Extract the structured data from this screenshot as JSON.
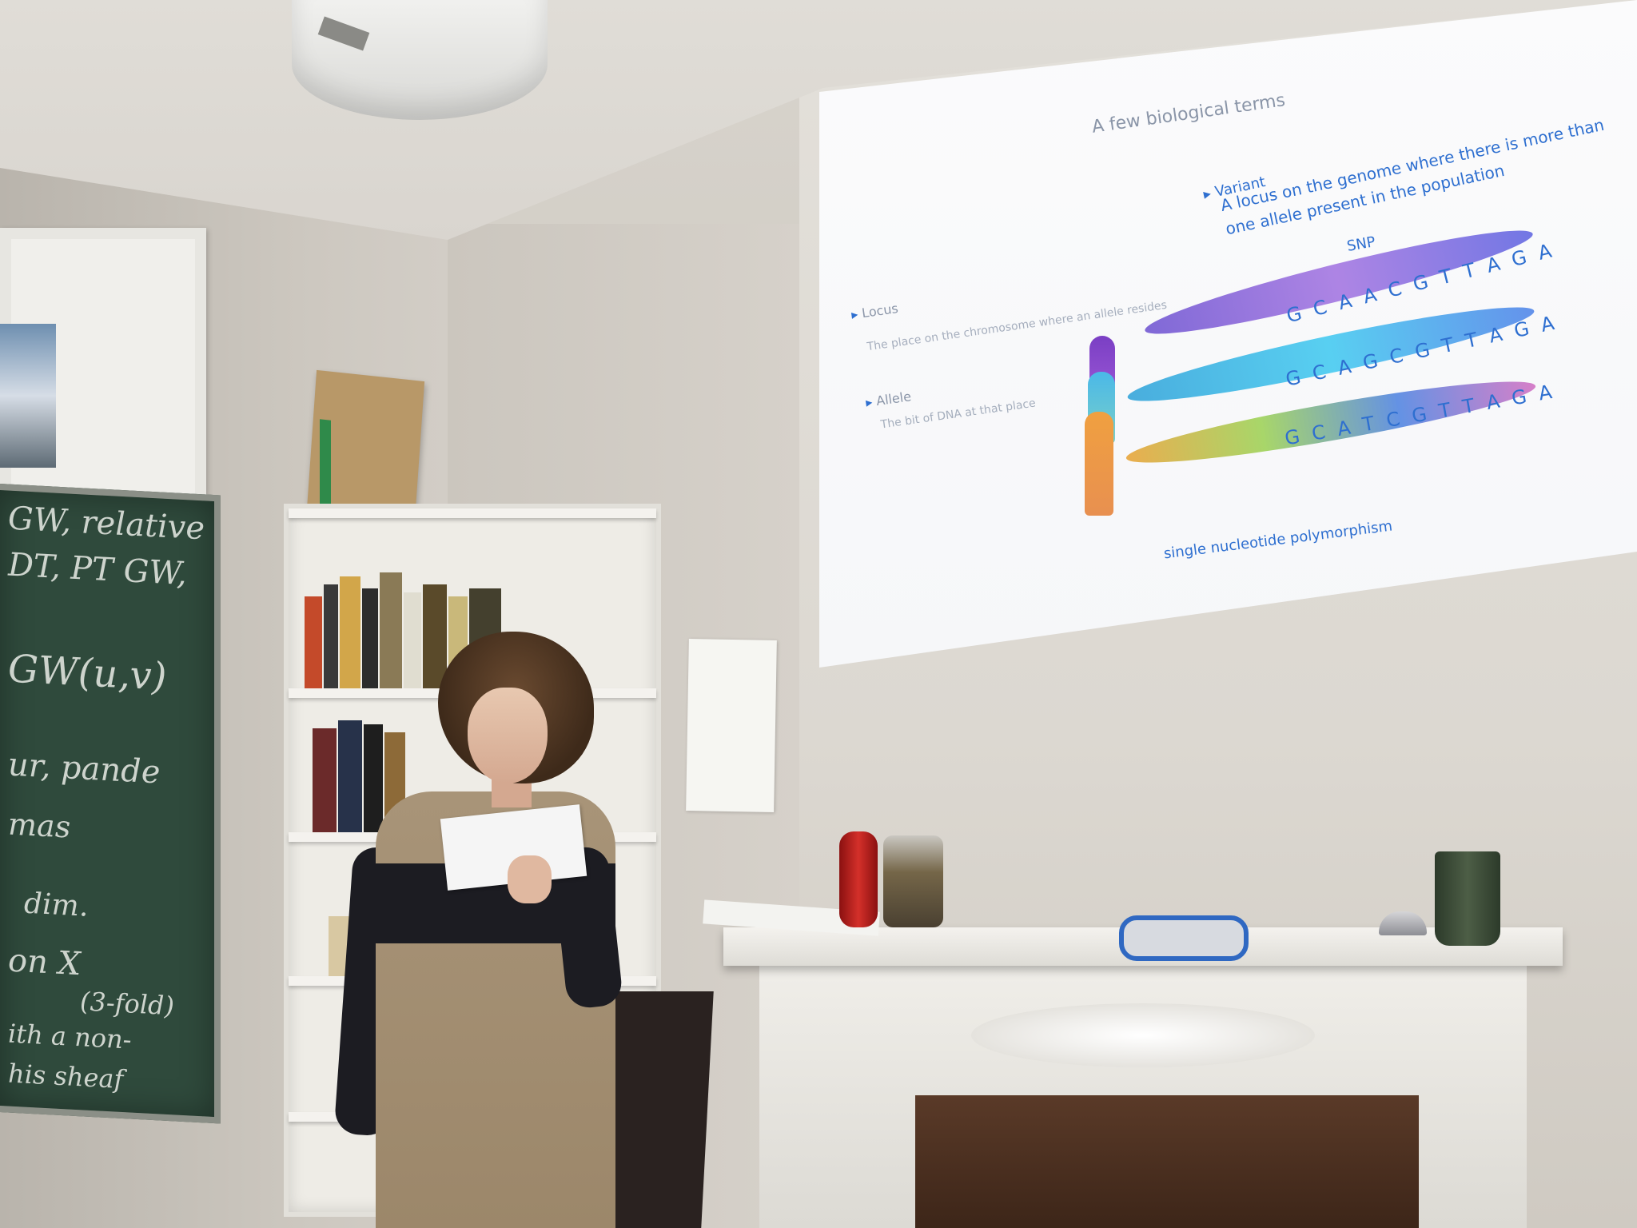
{
  "slide": {
    "title": "A few biological terms",
    "bullets": [
      {
        "term": "Locus",
        "definition": "The place on the chromosome where an allele resides"
      },
      {
        "term": "Allele",
        "definition": "The bit of DNA at that place"
      },
      {
        "term": "Variant",
        "definition": "A locus on the genome where there is more than one allele present in the population"
      }
    ],
    "snp_label": "SNP",
    "sequences": [
      "G C A A C G T T A G A",
      "G C A G C G T T A G A",
      "G C A T C G T T A G A"
    ],
    "caption": "single nucleotide polymorphism"
  },
  "chalkboard": {
    "lines": [
      "GW, relative",
      "DT, PT GW,",
      "GW(u,v)",
      "ur, pande",
      "mas",
      "dim.",
      "on X",
      "(3-fold)",
      "ith a non-",
      "his sheaf"
    ]
  },
  "colors": {
    "slide_text_blue": "#2e6fd0",
    "slide_text_grey": "#8a95a8",
    "chalkboard": "#2f4a3c",
    "speaker_red": "#c4231e"
  }
}
